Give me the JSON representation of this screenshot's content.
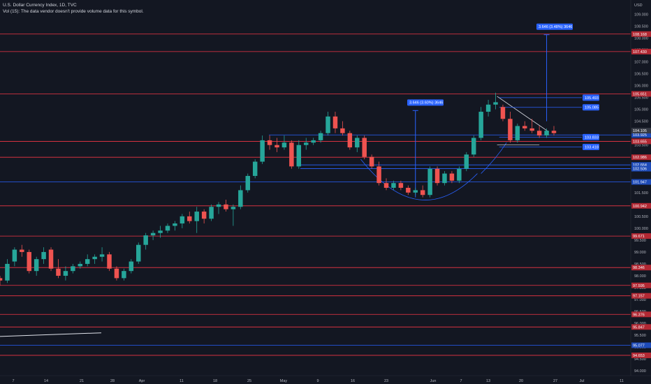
{
  "header": {
    "title": "U.S. Dollar Currency Index, 1D, TVC",
    "volume_note": "Vol (15): The data vendor doesn't provide volume data for this symbol."
  },
  "colors": {
    "background": "#131722",
    "up": "#26a69a",
    "down": "#ef5350",
    "resistance": "#f23645",
    "support": "#2962ff",
    "annotation": "#2962ff",
    "trend": "#e0e3eb"
  },
  "chart_data": {
    "type": "candlestick",
    "currency_label": "USD",
    "ylim": [
      93.8,
      109.6
    ],
    "y_ticks": [
      94.0,
      94.5,
      95.0,
      95.5,
      96.0,
      96.5,
      97.0,
      97.5,
      98.0,
      98.5,
      99.0,
      99.5,
      100.0,
      100.5,
      101.0,
      101.5,
      102.0,
      102.5,
      103.0,
      103.5,
      104.0,
      104.5,
      105.0,
      105.5,
      106.0,
      106.5,
      107.0,
      107.5,
      108.0,
      108.5,
      109.0
    ],
    "x_labels": [
      "7",
      "14",
      "21",
      "28",
      "Apr",
      "11",
      "18",
      "25",
      "May",
      "9",
      "16",
      "23",
      "Jun",
      "7",
      "13",
      "20",
      "27",
      "Jul",
      "11"
    ],
    "current_price": "104.105",
    "price_levels_red": [
      "108.168",
      "107.430",
      "105.651",
      "103.655",
      "102.986",
      "100.942",
      "99.671",
      "98.346",
      "97.595",
      "97.157",
      "96.376",
      "95.847",
      "94.653"
    ],
    "price_levels_blue": [
      "103.925",
      "102.664",
      "102.506",
      "101.947",
      "95.077"
    ],
    "measure_labels": [
      "3.646 (3.48%) 3646",
      "3.646 (3.60%) 3646"
    ],
    "breakout_levels": [
      "105.493",
      "105.085",
      "103.833",
      "103.418"
    ],
    "candles": [
      {
        "o": 97.9,
        "h": 98.0,
        "l": 97.6,
        "c": 97.8
      },
      {
        "o": 97.8,
        "h": 98.7,
        "l": 97.7,
        "c": 98.5
      },
      {
        "o": 98.6,
        "h": 99.2,
        "l": 98.4,
        "c": 99.1
      },
      {
        "o": 99.1,
        "h": 99.3,
        "l": 98.8,
        "c": 99.0
      },
      {
        "o": 99.0,
        "h": 99.1,
        "l": 98.1,
        "c": 98.2
      },
      {
        "o": 98.2,
        "h": 98.8,
        "l": 98.0,
        "c": 98.7
      },
      {
        "o": 98.7,
        "h": 99.2,
        "l": 98.5,
        "c": 99.0
      },
      {
        "o": 99.1,
        "h": 99.2,
        "l": 98.2,
        "c": 98.3
      },
      {
        "o": 98.3,
        "h": 98.7,
        "l": 97.9,
        "c": 98.0
      },
      {
        "o": 98.0,
        "h": 98.4,
        "l": 97.8,
        "c": 98.2
      },
      {
        "o": 98.2,
        "h": 98.5,
        "l": 98.1,
        "c": 98.4
      },
      {
        "o": 98.4,
        "h": 98.6,
        "l": 98.3,
        "c": 98.5
      },
      {
        "o": 98.5,
        "h": 98.9,
        "l": 98.4,
        "c": 98.7
      },
      {
        "o": 98.7,
        "h": 98.9,
        "l": 98.5,
        "c": 98.8
      },
      {
        "o": 98.8,
        "h": 99.2,
        "l": 98.6,
        "c": 98.9
      },
      {
        "o": 98.9,
        "h": 99.0,
        "l": 98.2,
        "c": 98.3
      },
      {
        "o": 98.3,
        "h": 98.4,
        "l": 97.8,
        "c": 97.9
      },
      {
        "o": 97.9,
        "h": 98.3,
        "l": 97.8,
        "c": 98.2
      },
      {
        "o": 98.2,
        "h": 98.7,
        "l": 98.1,
        "c": 98.6
      },
      {
        "o": 98.6,
        "h": 99.4,
        "l": 98.5,
        "c": 99.3
      },
      {
        "o": 99.3,
        "h": 99.8,
        "l": 99.1,
        "c": 99.7
      },
      {
        "o": 99.7,
        "h": 99.9,
        "l": 99.5,
        "c": 99.8
      },
      {
        "o": 99.8,
        "h": 100.1,
        "l": 99.6,
        "c": 99.9
      },
      {
        "o": 99.9,
        "h": 100.2,
        "l": 99.8,
        "c": 100.1
      },
      {
        "o": 100.1,
        "h": 100.3,
        "l": 99.9,
        "c": 100.2
      },
      {
        "o": 100.2,
        "h": 100.6,
        "l": 100.0,
        "c": 100.5
      },
      {
        "o": 100.5,
        "h": 100.7,
        "l": 100.2,
        "c": 100.3
      },
      {
        "o": 100.3,
        "h": 100.9,
        "l": 99.8,
        "c": 100.7
      },
      {
        "o": 100.7,
        "h": 100.8,
        "l": 100.2,
        "c": 100.4
      },
      {
        "o": 100.4,
        "h": 101.0,
        "l": 100.3,
        "c": 100.9
      },
      {
        "o": 100.9,
        "h": 101.1,
        "l": 100.6,
        "c": 101.0
      },
      {
        "o": 101.0,
        "h": 101.2,
        "l": 100.7,
        "c": 100.8
      },
      {
        "o": 100.8,
        "h": 101.0,
        "l": 100.1,
        "c": 100.9
      },
      {
        "o": 100.9,
        "h": 101.8,
        "l": 100.8,
        "c": 101.6
      },
      {
        "o": 101.6,
        "h": 102.3,
        "l": 101.5,
        "c": 102.2
      },
      {
        "o": 102.2,
        "h": 102.9,
        "l": 102.1,
        "c": 102.8
      },
      {
        "o": 102.8,
        "h": 103.9,
        "l": 102.7,
        "c": 103.7
      },
      {
        "o": 103.7,
        "h": 103.9,
        "l": 103.3,
        "c": 103.5
      },
      {
        "o": 103.5,
        "h": 103.8,
        "l": 103.2,
        "c": 103.4
      },
      {
        "o": 103.4,
        "h": 103.9,
        "l": 103.3,
        "c": 103.6
      },
      {
        "o": 103.6,
        "h": 103.7,
        "l": 102.5,
        "c": 102.6
      },
      {
        "o": 102.6,
        "h": 103.7,
        "l": 102.5,
        "c": 103.5
      },
      {
        "o": 103.5,
        "h": 103.8,
        "l": 103.3,
        "c": 103.6
      },
      {
        "o": 103.6,
        "h": 103.8,
        "l": 103.5,
        "c": 103.7
      },
      {
        "o": 103.7,
        "h": 104.1,
        "l": 103.6,
        "c": 104.0
      },
      {
        "o": 104.0,
        "h": 104.9,
        "l": 103.9,
        "c": 104.7
      },
      {
        "o": 104.7,
        "h": 104.9,
        "l": 104.0,
        "c": 104.2
      },
      {
        "o": 104.2,
        "h": 104.5,
        "l": 103.9,
        "c": 104.0
      },
      {
        "o": 104.0,
        "h": 104.1,
        "l": 103.3,
        "c": 103.4
      },
      {
        "o": 103.4,
        "h": 103.9,
        "l": 103.2,
        "c": 103.8
      },
      {
        "o": 103.8,
        "h": 103.9,
        "l": 102.9,
        "c": 103.0
      },
      {
        "o": 103.0,
        "h": 103.1,
        "l": 102.5,
        "c": 102.6
      },
      {
        "o": 102.6,
        "h": 102.8,
        "l": 101.8,
        "c": 101.9
      },
      {
        "o": 101.9,
        "h": 102.1,
        "l": 101.6,
        "c": 101.7
      },
      {
        "o": 101.7,
        "h": 102.0,
        "l": 101.6,
        "c": 101.9
      },
      {
        "o": 101.9,
        "h": 102.0,
        "l": 101.6,
        "c": 101.7
      },
      {
        "o": 101.7,
        "h": 101.8,
        "l": 101.4,
        "c": 101.5
      },
      {
        "o": 101.5,
        "h": 101.7,
        "l": 101.4,
        "c": 101.6
      },
      {
        "o": 101.6,
        "h": 101.8,
        "l": 101.3,
        "c": 101.4
      },
      {
        "o": 101.4,
        "h": 102.6,
        "l": 101.3,
        "c": 102.5
      },
      {
        "o": 102.5,
        "h": 102.6,
        "l": 101.8,
        "c": 101.9
      },
      {
        "o": 101.9,
        "h": 102.4,
        "l": 101.8,
        "c": 102.3
      },
      {
        "o": 102.3,
        "h": 102.4,
        "l": 101.9,
        "c": 102.0
      },
      {
        "o": 102.0,
        "h": 102.6,
        "l": 101.9,
        "c": 102.5
      },
      {
        "o": 102.5,
        "h": 103.2,
        "l": 102.4,
        "c": 103.1
      },
      {
        "o": 103.1,
        "h": 103.9,
        "l": 103.0,
        "c": 103.8
      },
      {
        "o": 103.8,
        "h": 105.1,
        "l": 103.7,
        "c": 104.9
      },
      {
        "o": 104.9,
        "h": 105.4,
        "l": 104.7,
        "c": 105.2
      },
      {
        "o": 105.2,
        "h": 105.7,
        "l": 105.0,
        "c": 105.3
      },
      {
        "o": 105.1,
        "h": 105.2,
        "l": 104.5,
        "c": 104.6
      },
      {
        "o": 104.6,
        "h": 104.9,
        "l": 103.6,
        "c": 103.7
      },
      {
        "o": 103.7,
        "h": 104.4,
        "l": 103.6,
        "c": 104.3
      },
      {
        "o": 104.3,
        "h": 104.5,
        "l": 104.1,
        "c": 104.2
      },
      {
        "o": 104.2,
        "h": 104.6,
        "l": 104.0,
        "c": 104.1
      },
      {
        "o": 104.1,
        "h": 104.3,
        "l": 103.8,
        "c": 103.9
      },
      {
        "o": 103.9,
        "h": 104.2,
        "l": 103.8,
        "c": 104.1
      },
      {
        "o": 104.1,
        "h": 104.3,
        "l": 103.9,
        "c": 104.0
      }
    ]
  }
}
